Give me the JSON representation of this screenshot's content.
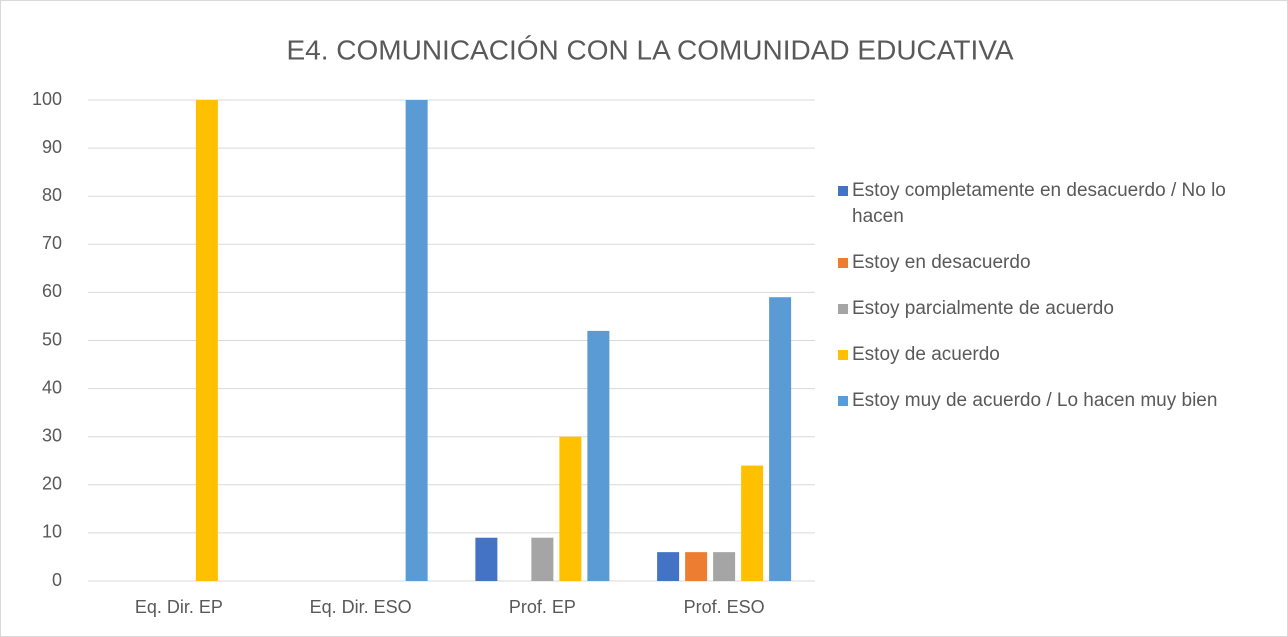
{
  "chart_data": {
    "type": "bar",
    "title": "E4. COMUNICACIÓN CON LA COMUNIDAD EDUCATIVA",
    "categories": [
      "Eq. Dir. EP",
      "Eq. Dir. ESO",
      "Prof. EP",
      "Prof. ESO"
    ],
    "series": [
      {
        "name": "Estoy completamente en desacuerdo / No lo hacen",
        "color": "#4472c4",
        "values": [
          0,
          0,
          9,
          6
        ]
      },
      {
        "name": "Estoy en desacuerdo",
        "color": "#ed7d31",
        "values": [
          0,
          0,
          0,
          6
        ]
      },
      {
        "name": "Estoy parcialmente de acuerdo",
        "color": "#a5a5a5",
        "values": [
          0,
          0,
          9,
          6
        ]
      },
      {
        "name": "Estoy de acuerdo",
        "color": "#ffc000",
        "values": [
          100,
          0,
          30,
          24
        ]
      },
      {
        "name": "Estoy muy de acuerdo / Lo hacen muy bien",
        "color": "#5b9bd5",
        "values": [
          0,
          100,
          52,
          59
        ]
      }
    ],
    "ylim": [
      0,
      100
    ],
    "yticks": [
      0,
      10,
      20,
      30,
      40,
      50,
      60,
      70,
      80,
      90,
      100
    ],
    "grid": true,
    "legend": "right"
  }
}
